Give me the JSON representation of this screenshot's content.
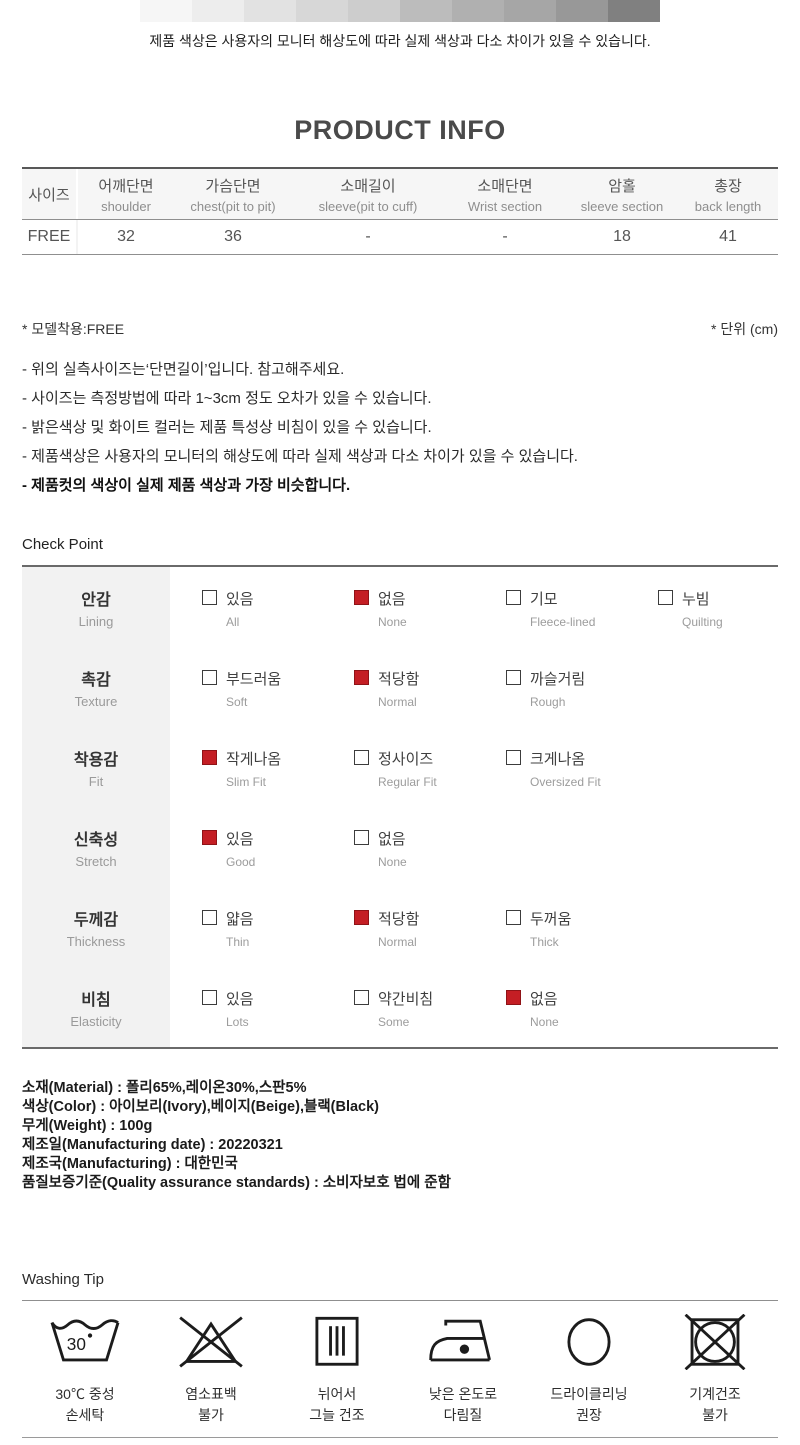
{
  "monitor_notice": {
    "text": "제품 색상은 사용자의 모니터 해상도에 따라 실제 색상과 다소 차이가 있을 수 있습니다.",
    "gradient_colors": [
      "#f6f6f6",
      "#ededed",
      "#e2e2e2",
      "#d7d7d7",
      "#cdcdcd",
      "#bcbcbc",
      "#b0b0b0",
      "#a6a6a6",
      "#989898",
      "#808080"
    ]
  },
  "product_info": {
    "title": "PRODUCT INFO",
    "columns": [
      {
        "ko": "사이즈",
        "en": ""
      },
      {
        "ko": "어깨단면",
        "en": "shoulder"
      },
      {
        "ko": "가슴단면",
        "en": "chest(pit to pit)"
      },
      {
        "ko": "소매길이",
        "en": "sleeve(pit to cuff)"
      },
      {
        "ko": "소매단면",
        "en": "Wrist section"
      },
      {
        "ko": "암홀",
        "en": "sleeve section"
      },
      {
        "ko": "총장",
        "en": "back length"
      }
    ],
    "row": [
      "FREE",
      "32",
      "36",
      "-",
      "-",
      "18",
      "41"
    ]
  },
  "size_notes": {
    "model_fit": "* 모델착용:FREE",
    "unit": "* 단위 (cm)",
    "notes": [
      "- 위의 실측사이즈는‘단면길이’입니다. 참고해주세요.",
      "- 사이즈는 측정방법에 따라 1~3cm 정도 오차가 있을 수 있습니다.",
      "- 밝은색상 및 화이트 컬러는 제품 특성상 비침이 있을 수 있습니다.",
      "- 제품색상은 사용자의 모니터의 해상도에 따라 실제 색상과 다소 차이가 있을 수 있습니다."
    ],
    "bold_note": "- 제품컷의 색상이 실제 제품 색상과 가장 비슷합니다."
  },
  "check_point": {
    "heading": "Check Point",
    "checked_color": "#c41e24",
    "rows": [
      {
        "ko": "안감",
        "en": "Lining",
        "options": [
          {
            "ko": "있음",
            "en": "All",
            "checked": false
          },
          {
            "ko": "없음",
            "en": "None",
            "checked": true
          },
          {
            "ko": "기모",
            "en": "Fleece-lined",
            "checked": false
          },
          {
            "ko": "누빔",
            "en": "Quilting",
            "checked": false
          }
        ]
      },
      {
        "ko": "촉감",
        "en": "Texture",
        "options": [
          {
            "ko": "부드러움",
            "en": "Soft",
            "checked": false
          },
          {
            "ko": "적당함",
            "en": "Normal",
            "checked": true
          },
          {
            "ko": "까슬거림",
            "en": "Rough",
            "checked": false
          }
        ]
      },
      {
        "ko": "착용감",
        "en": "Fit",
        "options": [
          {
            "ko": "작게나옴",
            "en": "Slim Fit",
            "checked": true
          },
          {
            "ko": "정사이즈",
            "en": "Regular Fit",
            "checked": false
          },
          {
            "ko": "크게나옴",
            "en": "Oversized Fit",
            "checked": false
          }
        ]
      },
      {
        "ko": "신축성",
        "en": "Stretch",
        "options": [
          {
            "ko": "있음",
            "en": "Good",
            "checked": true
          },
          {
            "ko": "없음",
            "en": "None",
            "checked": false
          }
        ]
      },
      {
        "ko": "두께감",
        "en": "Thickness",
        "options": [
          {
            "ko": "얇음",
            "en": "Thin",
            "checked": false
          },
          {
            "ko": "적당함",
            "en": "Normal",
            "checked": true
          },
          {
            "ko": "두꺼움",
            "en": "Thick",
            "checked": false
          }
        ]
      },
      {
        "ko": "비침",
        "en": "Elasticity",
        "options": [
          {
            "ko": "있음",
            "en": "Lots",
            "checked": false
          },
          {
            "ko": "약간비침",
            "en": "Some",
            "checked": false
          },
          {
            "ko": "없음",
            "en": "None",
            "checked": true
          }
        ]
      }
    ]
  },
  "material_info": {
    "lines": [
      "소재(Material) : 폴리65%,레이온30%,스판5%",
      "색상(Color) : 아이보리(Ivory),베이지(Beige),블랙(Black)",
      "무게(Weight) : 100g",
      "제조일(Manufacturing date) : 20220321",
      "제조국(Manufacturing) : 대한민국",
      "품질보증기준(Quality assurance standards) : 소비자보호 법에 준함"
    ]
  },
  "washing_tip": {
    "heading": "Washing Tip",
    "items": [
      {
        "icon": "handwash-30-icon",
        "line1": "30℃ 중성",
        "line2": "손세탁"
      },
      {
        "icon": "no-bleach-icon",
        "line1": "염소표백",
        "line2": "불가"
      },
      {
        "icon": "flat-dry-shade-icon",
        "line1": "뉘어서",
        "line2": "그늘 건조"
      },
      {
        "icon": "iron-low-icon",
        "line1": "낮은 온도로",
        "line2": "다림질"
      },
      {
        "icon": "dry-clean-icon",
        "line1": "드라이클리닝",
        "line2": "권장"
      },
      {
        "icon": "no-tumble-dry-icon",
        "line1": "기계건조",
        "line2": "불가"
      }
    ]
  }
}
